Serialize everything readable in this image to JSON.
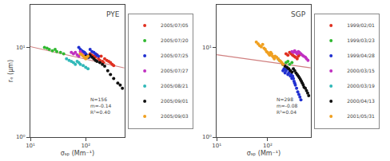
{
  "chart_data": [
    {
      "type": "scatter",
      "title": "PYE",
      "x_label": "σₛₚ (Mm⁻¹)",
      "y_label": "rₑ (μm)",
      "annotation": "N=156\nm=-0.14\nR²=0.40",
      "log": true,
      "grid": false,
      "legend": "right",
      "xlim": [
        10,
        500
      ],
      "xticks": [
        {
          "value": 10,
          "label": "10¹"
        },
        {
          "value": 100,
          "label": "10²"
        }
      ],
      "ylim": [
        1.0,
        30
      ],
      "yticks": [
        {
          "value": 1,
          "label": "10⁰"
        },
        {
          "value": 10,
          "label": "10¹"
        }
      ],
      "series": [
        {
          "type": "line",
          "color": "#d08080",
          "x": [
            10,
            500
          ],
          "values": [
            10.2329,
            5.9176
          ]
        },
        {
          "name": "2005/07/05",
          "color": "#e03020",
          "x": [
            120,
            130,
            140,
            150,
            160,
            170,
            180,
            190,
            200,
            210,
            220,
            240,
            260,
            280,
            300,
            320
          ],
          "values": [
            8.5,
            8.2,
            8.0,
            7.8,
            8.3,
            7.5,
            7.2,
            8.0,
            7.0,
            6.8,
            7.5,
            7.2,
            7.0,
            6.8,
            6.5,
            6.3
          ]
        },
        {
          "name": "2005/07/20",
          "color": "#30b830",
          "x": [
            18,
            20,
            22,
            25,
            28,
            30,
            35,
            40
          ],
          "values": [
            10.0,
            9.8,
            9.5,
            9.2,
            9.5,
            9.0,
            8.8,
            8.5
          ]
        },
        {
          "name": "2005/07/25",
          "color": "#2030d0",
          "x": [
            75,
            80,
            85,
            90,
            95,
            100,
            105,
            110,
            115,
            120,
            130,
            140,
            150,
            160,
            170
          ],
          "values": [
            10.0,
            9.5,
            9.2,
            9.0,
            8.8,
            8.5,
            8.2,
            8.0,
            7.8,
            9.5,
            9.0,
            8.8,
            8.5,
            8.2,
            8.0
          ]
        },
        {
          "name": "2005/07/27",
          "color": "#c030c0",
          "x": [
            55,
            60,
            65,
            70,
            75,
            80,
            85,
            90,
            95,
            100
          ],
          "values": [
            8.8,
            8.5,
            8.8,
            8.3,
            8.0,
            9.0,
            8.5,
            8.2,
            8.0,
            7.8
          ]
        },
        {
          "name": "2005/08/21",
          "color": "#30b8b8",
          "x": [
            45,
            50,
            55,
            60,
            65,
            70,
            75,
            80,
            90,
            100,
            110
          ],
          "values": [
            7.5,
            7.2,
            7.0,
            6.8,
            6.5,
            7.0,
            6.8,
            6.5,
            6.3,
            6.0,
            5.8
          ]
        },
        {
          "name": "2005/09/01",
          "color": "#101010",
          "x": [
            100,
            110,
            120,
            130,
            140,
            150,
            160,
            180,
            200,
            220,
            250,
            280,
            320,
            380,
            420,
            460
          ],
          "values": [
            8.0,
            7.8,
            8.2,
            7.8,
            7.5,
            7.2,
            7.0,
            6.8,
            6.5,
            6.2,
            5.5,
            5.0,
            4.5,
            4.0,
            3.8,
            3.5
          ]
        },
        {
          "name": "2005/09/03",
          "color": "#f0a020",
          "x": [
            80,
            85,
            90,
            95,
            100,
            105,
            110
          ],
          "values": [
            8.5,
            8.3,
            8.0,
            7.8,
            7.5,
            7.8,
            8.0
          ]
        }
      ]
    },
    {
      "type": "scatter",
      "title": "SGP",
      "x_label": "σₛₚ (Mm⁻¹)",
      "annotation": "N=298\nm=-0.08\nR²=0.04",
      "log": true,
      "grid": false,
      "legend": "right",
      "xlim": [
        10,
        700
      ],
      "xticks": [
        {
          "value": 10,
          "label": "10¹"
        },
        {
          "value": 100,
          "label": "10²"
        }
      ],
      "ylim": [
        1.0,
        30
      ],
      "yticks": [
        {
          "value": 1,
          "label": "10⁰"
        },
        {
          "value": 10,
          "label": "10¹"
        }
      ],
      "series": [
        {
          "type": "line",
          "color": "#d08080",
          "x": [
            10,
            700
          ],
          "values": [
            8.3176,
            5.921
          ]
        },
        {
          "name": "1999/02/01",
          "color": "#e03020",
          "x": [
            230,
            250,
            270,
            290,
            310,
            330,
            350,
            380,
            400,
            420
          ],
          "values": [
            8.5,
            8.2,
            8.8,
            8.5,
            8.2,
            8.0,
            7.8,
            7.5,
            8.0,
            8.3
          ]
        },
        {
          "name": "1999/03/23",
          "color": "#30b830",
          "x": [
            230,
            250,
            270,
            300
          ],
          "values": [
            6.8,
            7.0,
            6.5,
            6.8
          ]
        },
        {
          "name": "1999/04/28",
          "color": "#2030d0",
          "x": [
            200,
            210,
            220,
            230,
            240,
            250,
            260,
            270,
            280,
            290,
            300,
            310,
            320,
            330,
            340,
            350,
            370,
            390,
            410,
            430,
            450
          ],
          "values": [
            5.5,
            5.8,
            5.2,
            5.5,
            5.8,
            5.0,
            5.2,
            5.5,
            4.8,
            5.0,
            4.5,
            4.8,
            4.5,
            4.2,
            4.0,
            3.8,
            3.5,
            3.2,
            3.0,
            2.8,
            2.6
          ]
        },
        {
          "name": "2000/03/15",
          "color": "#c030c0",
          "x": [
            300,
            320,
            340,
            360,
            380,
            400,
            420,
            450,
            480,
            510,
            550,
            580,
            620
          ],
          "values": [
            9.0,
            8.8,
            9.2,
            8.8,
            8.5,
            9.0,
            8.8,
            8.5,
            8.2,
            8.0,
            7.8,
            7.5,
            7.2
          ]
        },
        {
          "name": "2000/03/19",
          "color": "#30b8b8",
          "x": [
            160,
            170
          ],
          "values": [
            7.5,
            7.2
          ]
        },
        {
          "name": "2000/04/13",
          "color": "#101010",
          "x": [
            200,
            220,
            240,
            260,
            280,
            300,
            320,
            340,
            360,
            380,
            400,
            420,
            440,
            460,
            480,
            500,
            520,
            550,
            580,
            610,
            640
          ],
          "values": [
            6.5,
            6.2,
            6.0,
            5.8,
            5.5,
            5.3,
            5.8,
            5.5,
            5.2,
            5.0,
            4.8,
            4.6,
            4.4,
            4.2,
            4.0,
            3.8,
            3.6,
            3.5,
            3.3,
            3.1,
            2.9
          ]
        },
        {
          "name": "2001/05/31",
          "color": "#f0a020",
          "x": [
            60,
            65,
            70,
            75,
            80,
            85,
            90,
            95,
            100,
            105,
            110,
            115,
            120,
            125,
            130,
            135,
            140,
            150,
            160,
            170,
            180,
            190,
            200
          ],
          "values": [
            11.5,
            11.0,
            10.5,
            10.2,
            10.8,
            9.8,
            9.5,
            9.0,
            8.8,
            8.5,
            8.2,
            8.8,
            8.5,
            8.0,
            7.8,
            7.5,
            8.0,
            7.8,
            7.5,
            7.2,
            7.0,
            6.8,
            6.5
          ]
        }
      ]
    }
  ]
}
